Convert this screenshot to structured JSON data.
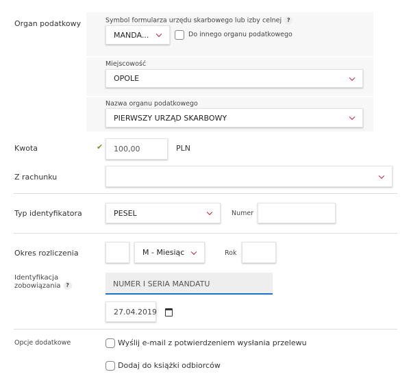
{
  "organ": {
    "label": "Organ podatkowy",
    "symbol_label": "Symbol formularza urzędu skarbowego lub izby celnej",
    "help": "?",
    "symbol_value": "MANDA...",
    "other_organ": "Do innego organu podatkowego",
    "city_label": "Miejscowość",
    "city_value": "OPOLE",
    "name_label": "Nazwa organu podatkowego",
    "name_value": "PIERWSZY URZĄD SKARBOWY"
  },
  "amount": {
    "label": "Kwota",
    "value": "100,00",
    "currency": "PLN"
  },
  "account": {
    "label": "Z rachunku",
    "value": ""
  },
  "identifier": {
    "label": "Typ identyfikatora",
    "type_value": "PESEL",
    "number_label": "Numer",
    "number_value": ""
  },
  "period": {
    "label": "Okres rozliczenia",
    "number_value": "",
    "period_value": "M - Miesiąc",
    "year_label": "Rok",
    "year_value": ""
  },
  "obligation": {
    "label_line1": "Identyfikacja",
    "label_line2": "zobowiązania",
    "help": "?",
    "placeholder": "NUMER I SERIA MANDATU",
    "date": "27.04.2019"
  },
  "options": {
    "label": "Opcje dodatkowe",
    "email": "Wyślij e-mail z potwierdzeniem wysłania przelewu",
    "add_book": "Dodaj do książki odbiorców"
  },
  "colors": {
    "accent": "#c8102e",
    "focus": "#1a73c8",
    "valid": "#6a9a1f"
  }
}
